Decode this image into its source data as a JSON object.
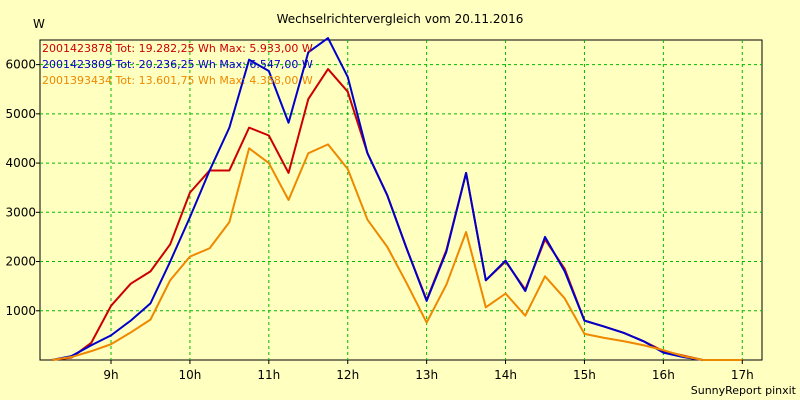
{
  "chart_data": {
    "type": "line",
    "title": "Wechselrichtervergleich vom 20.11.2016",
    "ylabel": "W",
    "xlabel": "",
    "footer": "SunnyReport pinxit",
    "xlim": [
      8.1,
      17.25
    ],
    "ylim": [
      0,
      6500
    ],
    "x_ticks": [
      9,
      10,
      11,
      12,
      13,
      14,
      15,
      16,
      17
    ],
    "x_tick_labels": [
      "9h",
      "10h",
      "11h",
      "12h",
      "13h",
      "14h",
      "15h",
      "16h",
      "17h"
    ],
    "y_ticks": [
      1000,
      2000,
      3000,
      4000,
      5000,
      6000
    ],
    "y_tick_labels": [
      "1000",
      "2000",
      "3000",
      "4000",
      "5000",
      "6000"
    ],
    "grid": true,
    "legend_position": "top-left",
    "x": [
      8.25,
      8.5,
      8.75,
      9.0,
      9.25,
      9.5,
      9.75,
      10.0,
      10.25,
      10.5,
      10.75,
      11.0,
      11.25,
      11.5,
      11.75,
      12.0,
      12.25,
      12.5,
      12.75,
      13.0,
      13.25,
      13.5,
      13.75,
      14.0,
      14.25,
      14.5,
      14.75,
      15.0,
      15.25,
      15.5,
      15.75,
      16.0,
      16.25,
      16.5,
      16.75,
      17.0
    ],
    "series": [
      {
        "name": "2001423878",
        "legend_label": "2001423878 Tot: 19.282,25 Wh Max: 5.933,00 W",
        "color": "#cc0000",
        "values": [
          0,
          50,
          350,
          1100,
          1550,
          1800,
          2350,
          3400,
          3850,
          3850,
          4720,
          4560,
          3800,
          5300,
          5910,
          5450,
          4200,
          3350,
          2250,
          1220,
          2230,
          3800,
          1620,
          2000,
          1430,
          2450,
          1850,
          800,
          680,
          550,
          380,
          180,
          90,
          0,
          0,
          0
        ]
      },
      {
        "name": "2001423809",
        "legend_label": "2001423809 Tot: 20.236,25 Wh Max: 6.547,00 W",
        "color": "#0000cc",
        "values": [
          0,
          80,
          300,
          500,
          800,
          1150,
          2000,
          2900,
          3850,
          4720,
          6100,
          5870,
          4820,
          6250,
          6540,
          5750,
          4200,
          3350,
          2250,
          1200,
          2200,
          3800,
          1620,
          2020,
          1400,
          2500,
          1800,
          800,
          680,
          550,
          380,
          150,
          60,
          0,
          0,
          0
        ]
      },
      {
        "name": "2001393434",
        "legend_label": "2001393434 Tot: 13.601,75 Wh Max: 4.388,00 W",
        "color": "#ee8800",
        "values": [
          0,
          60,
          180,
          320,
          560,
          820,
          1620,
          2100,
          2270,
          2800,
          4300,
          4000,
          3250,
          4200,
          4380,
          3880,
          2850,
          2300,
          1550,
          760,
          1530,
          2600,
          1070,
          1350,
          900,
          1700,
          1250,
          530,
          450,
          380,
          300,
          200,
          80,
          0,
          0,
          0
        ]
      }
    ]
  }
}
